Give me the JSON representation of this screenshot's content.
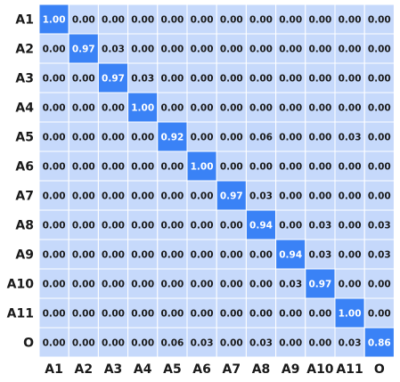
{
  "chart_data": {
    "type": "heatmap",
    "title": "",
    "xlabel": "",
    "ylabel": "",
    "x_categories": [
      "A1",
      "A2",
      "A3",
      "A4",
      "A5",
      "A6",
      "A7",
      "A8",
      "A9",
      "A10",
      "A11",
      "O"
    ],
    "y_categories": [
      "A1",
      "A2",
      "A3",
      "A4",
      "A5",
      "A6",
      "A7",
      "A8",
      "A9",
      "A10",
      "A11",
      "O"
    ],
    "values": [
      [
        1.0,
        0.0,
        0.0,
        0.0,
        0.0,
        0.0,
        0.0,
        0.0,
        0.0,
        0.0,
        0.0,
        0.0
      ],
      [
        0.0,
        0.97,
        0.03,
        0.0,
        0.0,
        0.0,
        0.0,
        0.0,
        0.0,
        0.0,
        0.0,
        0.0
      ],
      [
        0.0,
        0.0,
        0.97,
        0.03,
        0.0,
        0.0,
        0.0,
        0.0,
        0.0,
        0.0,
        0.0,
        0.0
      ],
      [
        0.0,
        0.0,
        0.0,
        1.0,
        0.0,
        0.0,
        0.0,
        0.0,
        0.0,
        0.0,
        0.0,
        0.0
      ],
      [
        0.0,
        0.0,
        0.0,
        0.0,
        0.92,
        0.0,
        0.0,
        0.06,
        0.0,
        0.0,
        0.03,
        0.0
      ],
      [
        0.0,
        0.0,
        0.0,
        0.0,
        0.0,
        1.0,
        0.0,
        0.0,
        0.0,
        0.0,
        0.0,
        0.0
      ],
      [
        0.0,
        0.0,
        0.0,
        0.0,
        0.0,
        0.0,
        0.97,
        0.03,
        0.0,
        0.0,
        0.0,
        0.0
      ],
      [
        0.0,
        0.0,
        0.0,
        0.0,
        0.0,
        0.0,
        0.0,
        0.94,
        0.0,
        0.03,
        0.0,
        0.03
      ],
      [
        0.0,
        0.0,
        0.0,
        0.0,
        0.0,
        0.0,
        0.0,
        0.0,
        0.94,
        0.03,
        0.0,
        0.03
      ],
      [
        0.0,
        0.0,
        0.0,
        0.0,
        0.0,
        0.0,
        0.0,
        0.0,
        0.03,
        0.97,
        0.0,
        0.0
      ],
      [
        0.0,
        0.0,
        0.0,
        0.0,
        0.0,
        0.0,
        0.0,
        0.0,
        0.0,
        0.0,
        1.0,
        0.0
      ],
      [
        0.0,
        0.0,
        0.0,
        0.0,
        0.06,
        0.03,
        0.0,
        0.03,
        0.0,
        0.0,
        0.03,
        0.86
      ]
    ],
    "value_format": "2-decimals",
    "value_range": [
      0,
      1
    ],
    "legend": "none",
    "grid": true,
    "colors": {
      "low": "#c6d9fb",
      "high": "#3a82f6",
      "grid_line": "#ffffff",
      "text_dark": "#1a1a1a",
      "text_light": "#ffffff"
    }
  }
}
